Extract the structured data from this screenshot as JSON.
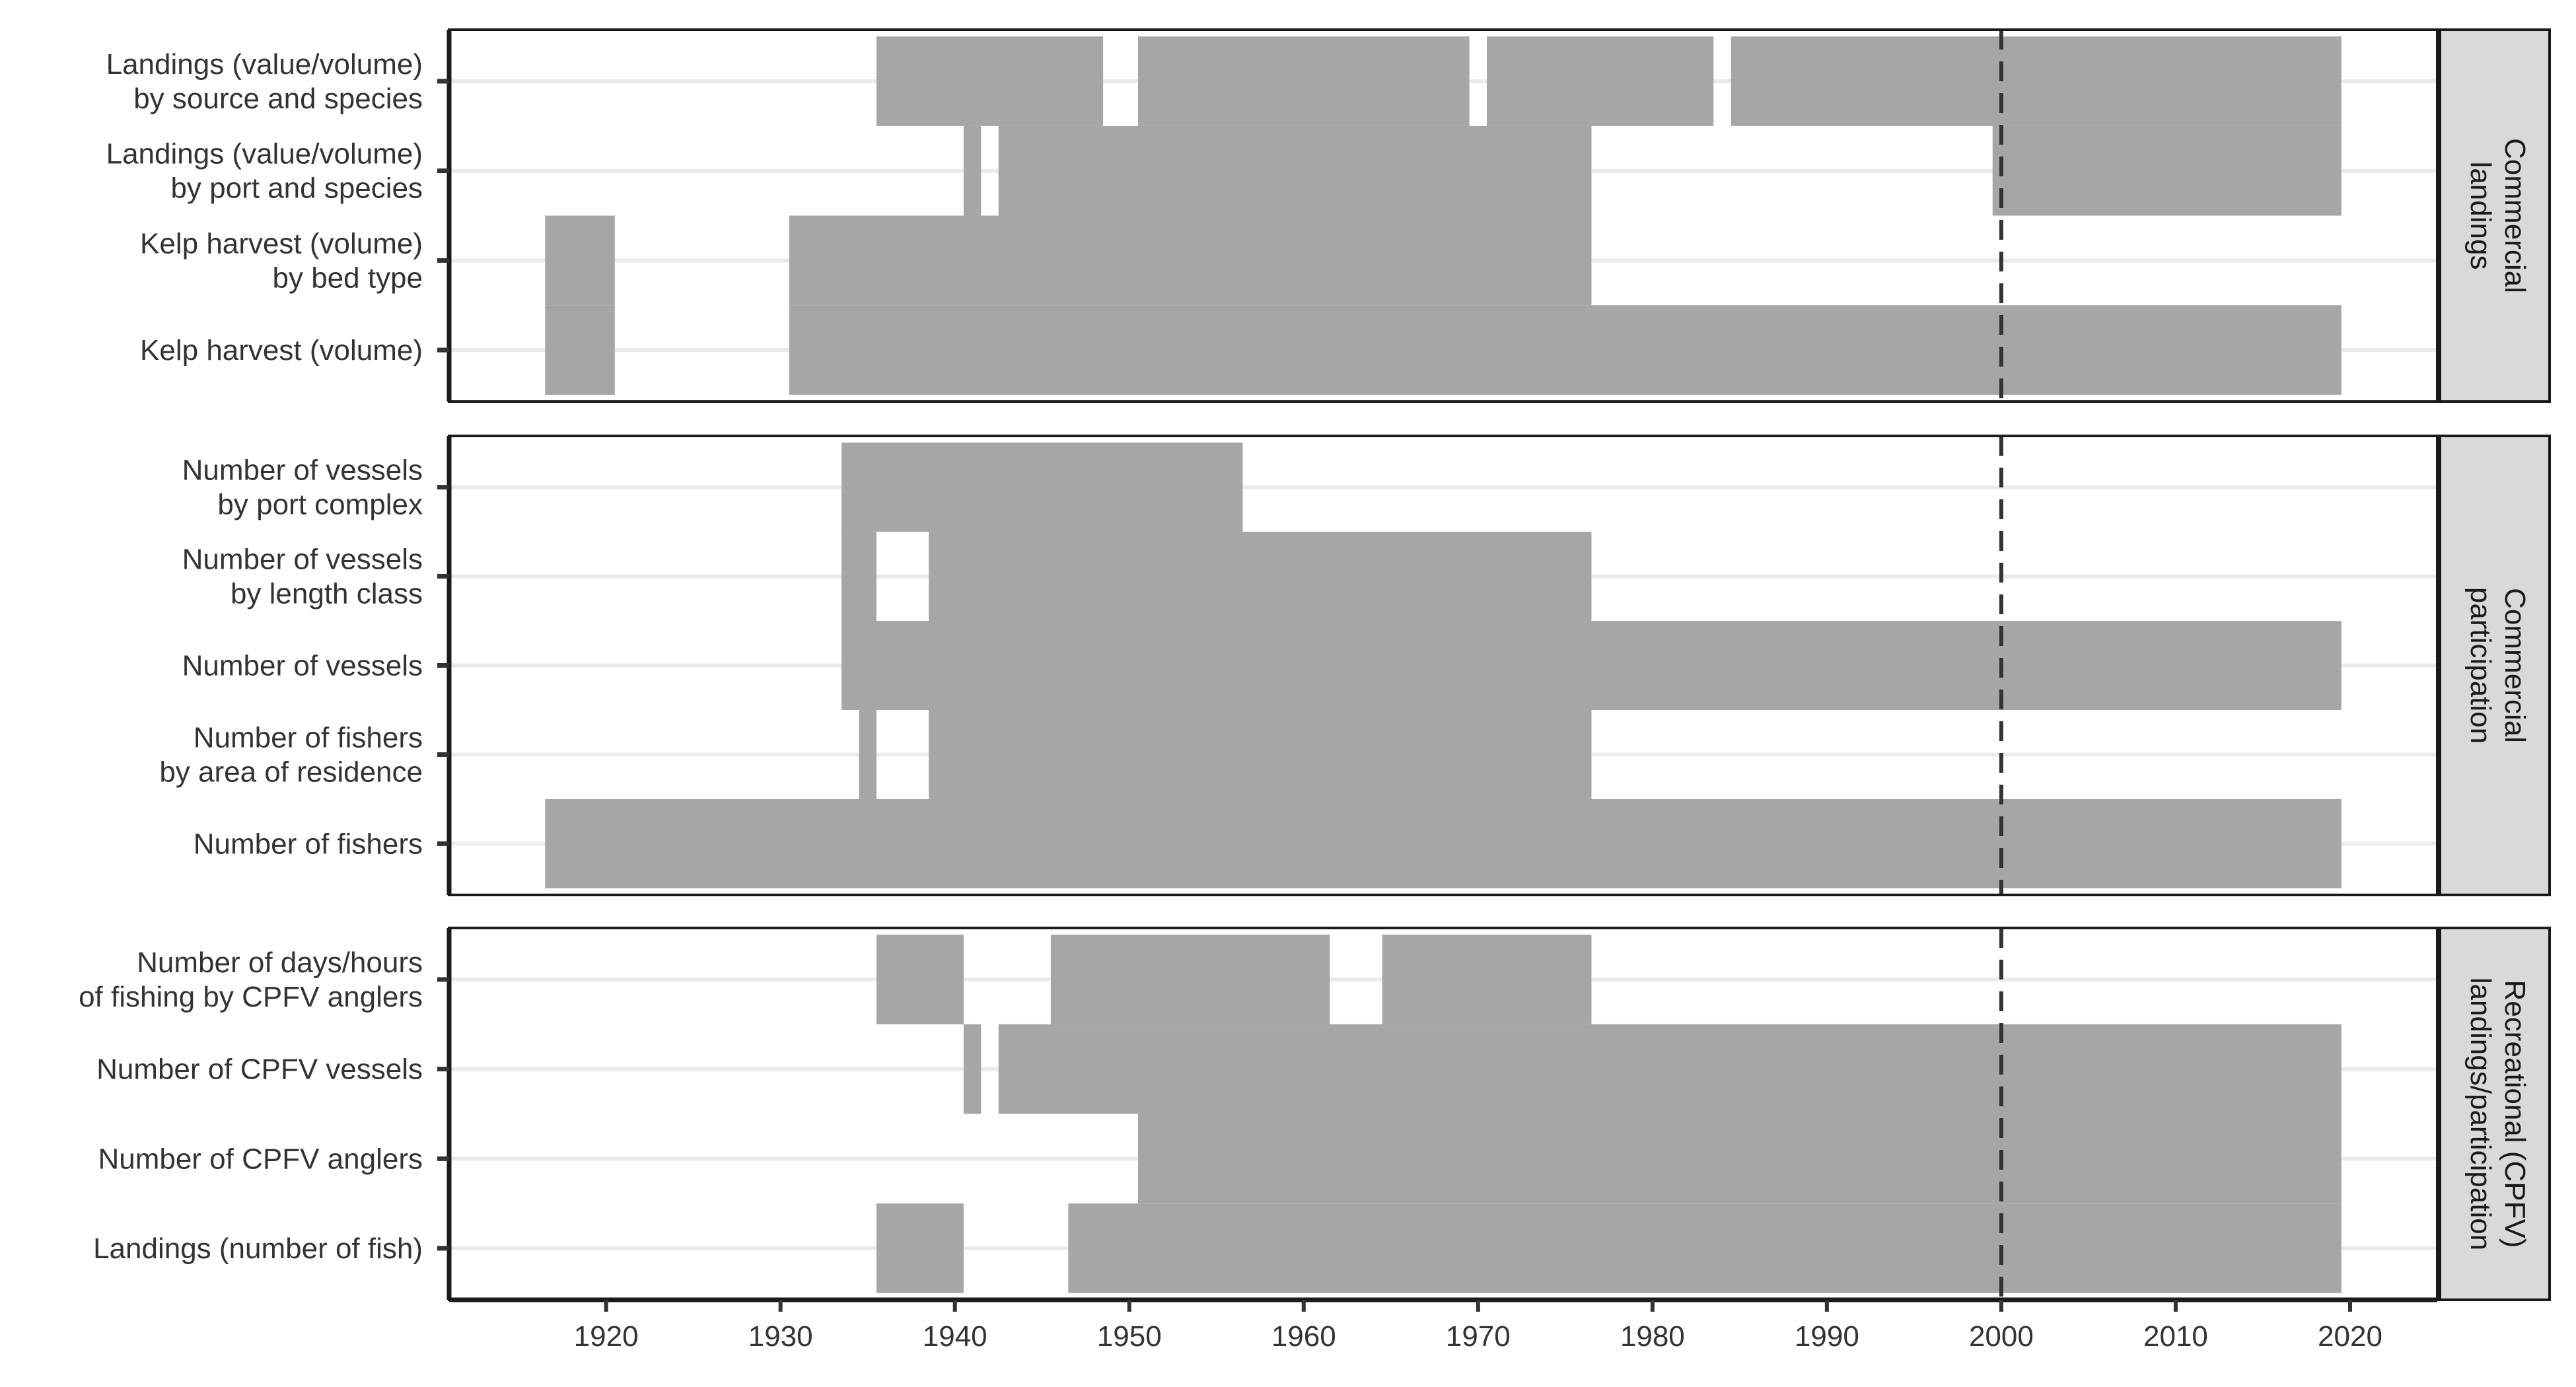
{
  "chart_data": {
    "type": "bar",
    "orientation": "horizontal-range",
    "xlim": [
      1911,
      2025
    ],
    "x_ticks": [
      "1920",
      "1930",
      "1940",
      "1950",
      "1960",
      "1970",
      "1980",
      "1990",
      "2000",
      "2010",
      "2020"
    ],
    "x_tick_values": [
      1920,
      1930,
      1940,
      1950,
      1960,
      1970,
      1980,
      1990,
      2000,
      2010,
      2020
    ],
    "reference_line": {
      "x": 2000,
      "style": "dashed"
    },
    "grid": "horizontal-major",
    "bar_color": "#a6a6a6",
    "panels": [
      {
        "strip_label": [
          "Commercial",
          "landings"
        ],
        "rows": [
          {
            "label": [
              "Landings (value/volume)",
              "by source and species"
            ],
            "years": [
              [
                1936,
                1948
              ],
              [
                1951,
                1969
              ],
              [
                1971,
                1983
              ],
              [
                1985,
                2019
              ]
            ]
          },
          {
            "label": [
              "Landings (value/volume)",
              "by port and species"
            ],
            "years": [
              [
                1941,
                1941
              ],
              [
                1943,
                1976
              ],
              [
                2000,
                2019
              ]
            ]
          },
          {
            "label": [
              "Kelp harvest (volume)",
              "by bed type"
            ],
            "years": [
              [
                1917,
                1920
              ],
              [
                1931,
                1976
              ]
            ]
          },
          {
            "label": [
              "Kelp harvest (volume)"
            ],
            "years": [
              [
                1917,
                1920
              ],
              [
                1931,
                2019
              ]
            ]
          }
        ]
      },
      {
        "strip_label": [
          "Commercial",
          "participation"
        ],
        "rows": [
          {
            "label": [
              "Number of vessels",
              "by port complex"
            ],
            "years": [
              [
                1934,
                1956
              ]
            ]
          },
          {
            "label": [
              "Number of vessels",
              "by length class"
            ],
            "years": [
              [
                1934,
                1935
              ],
              [
                1939,
                1976
              ]
            ]
          },
          {
            "label": [
              "Number of vessels"
            ],
            "years": [
              [
                1934,
                2019
              ]
            ]
          },
          {
            "label": [
              "Number of fishers",
              "by area of residence"
            ],
            "years": [
              [
                1935,
                1935
              ],
              [
                1939,
                1976
              ]
            ]
          },
          {
            "label": [
              "Number of fishers"
            ],
            "years": [
              [
                1917,
                2019
              ]
            ]
          }
        ]
      },
      {
        "strip_label": [
          "Recreational (CPFV)",
          "landings/participation"
        ],
        "rows": [
          {
            "label": [
              "Number of days/hours",
              "of fishing by CPFV anglers"
            ],
            "years": [
              [
                1936,
                1940
              ],
              [
                1946,
                1961
              ],
              [
                1965,
                1976
              ]
            ]
          },
          {
            "label": [
              "Number of CPFV vessels"
            ],
            "years": [
              [
                1941,
                1941
              ],
              [
                1943,
                2019
              ]
            ]
          },
          {
            "label": [
              "Number of CPFV anglers"
            ],
            "years": [
              [
                1951,
                2019
              ]
            ]
          },
          {
            "label": [
              "Landings (number of fish)"
            ],
            "years": [
              [
                1936,
                1940
              ],
              [
                1947,
                2019
              ]
            ]
          }
        ]
      }
    ]
  }
}
